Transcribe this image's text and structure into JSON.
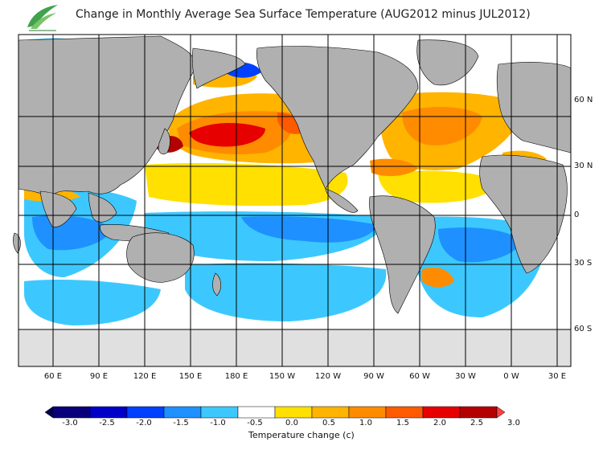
{
  "title": "Change in Monthly Average Sea Surface Temperature (AUG2012 minus JUL2012)",
  "latitude_labels": [
    "60 N",
    "30 N",
    "0",
    "30 S",
    "60 S"
  ],
  "longitude_labels": [
    "60 E",
    "90 E",
    "120 E",
    "150 E",
    "180 E",
    "150 W",
    "120 W",
    "90 W",
    "60 W",
    "30 W",
    "0 W",
    "30 E"
  ],
  "colorbar": {
    "title": "Temperature change  (c)",
    "tick_labels": [
      "-3.0",
      "-2.5",
      "-2.0",
      "-1.5",
      "-1.0",
      "-0.5",
      "0.0",
      "0.5",
      "1.0",
      "1.5",
      "2.0",
      "2.5",
      "3.0"
    ],
    "colors": [
      "#08007a",
      "#0000c8",
      "#0040ff",
      "#1e90ff",
      "#3cc8ff",
      "#ffffff",
      "#ffe000",
      "#ffb400",
      "#ff8c00",
      "#ff5a00",
      "#e60000",
      "#b40000"
    ],
    "below_color": "#000050",
    "above_color": "#ff4040"
  },
  "colors": {
    "land": "#b0b0b0",
    "ice": "#e0e0e0",
    "grid": "#000000"
  }
}
